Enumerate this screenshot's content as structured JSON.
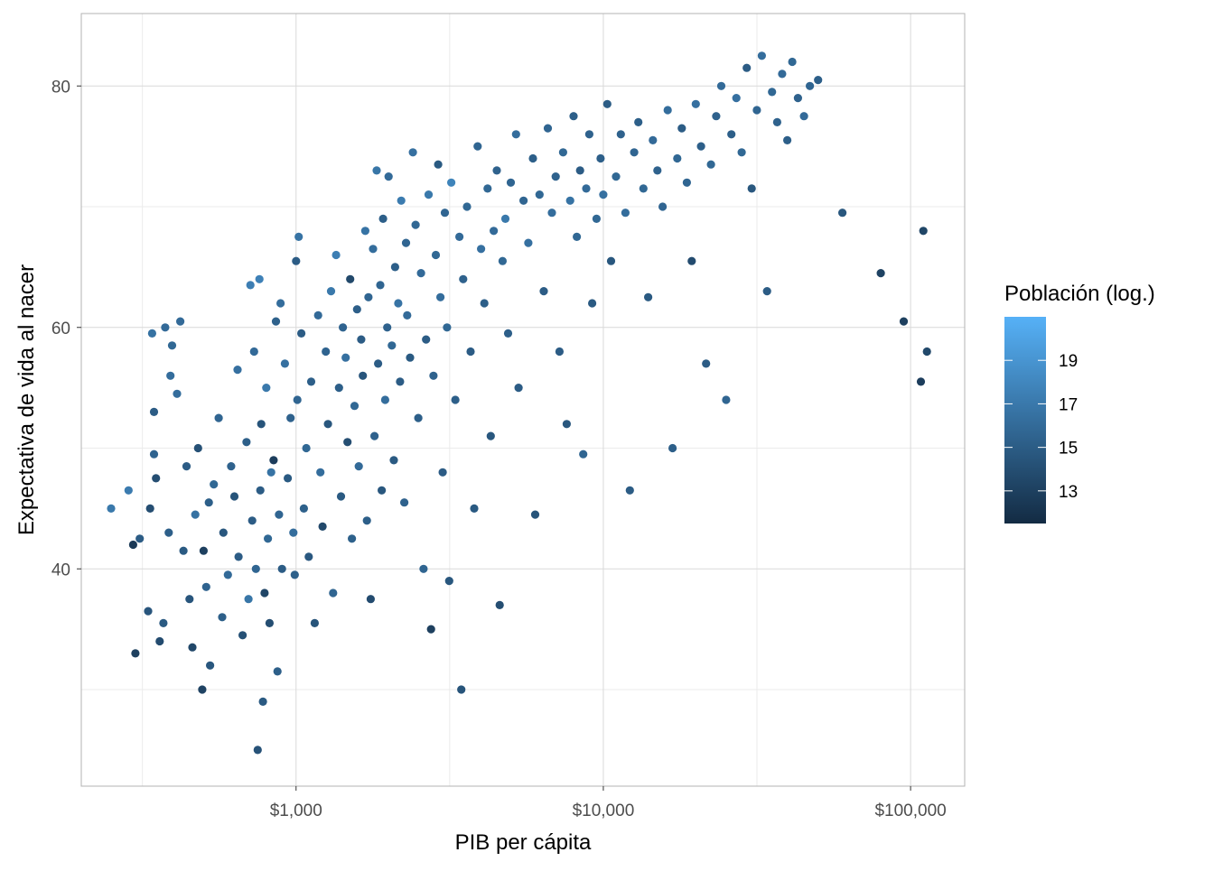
{
  "chart_data": {
    "type": "scatter",
    "xlabel": "PIB per cápita",
    "ylabel": "Expectativa de vida al nacer",
    "x_scale": "log10",
    "xlim": [
      200,
      150000
    ],
    "ylim": [
      22,
      86
    ],
    "x_ticks": [
      1000,
      10000,
      100000
    ],
    "x_tick_labels": [
      "$1,000",
      "$10,000",
      "$100,000"
    ],
    "y_ticks": [
      40,
      60,
      80
    ],
    "y_tick_labels": [
      "40",
      "60",
      "80"
    ],
    "grid": true,
    "color_scale": {
      "title": "Población (log.)",
      "range": [
        11.5,
        21
      ],
      "ticks": [
        13,
        15,
        17,
        19
      ],
      "tick_labels": [
        "13",
        "15",
        "17",
        "19"
      ],
      "low_color": "#132b43",
      "high_color": "#56b1f7"
    },
    "legend_position": "right",
    "points_note": "",
    "points": [
      [
        250,
        45,
        17.0
      ],
      [
        285,
        46.5,
        17.2
      ],
      [
        295,
        42,
        12.5
      ],
      [
        300,
        33,
        13.0
      ],
      [
        310,
        42.5,
        15.0
      ],
      [
        330,
        36.5,
        14.5
      ],
      [
        335,
        45,
        14.0
      ],
      [
        340,
        59.5,
        16.5
      ],
      [
        345,
        49.5,
        15.5
      ],
      [
        345,
        53,
        15.0
      ],
      [
        350,
        47.5,
        14.0
      ],
      [
        360,
        34,
        13.8
      ],
      [
        370,
        35.5,
        14.8
      ],
      [
        375,
        60,
        16.0
      ],
      [
        385,
        43,
        15.2
      ],
      [
        390,
        56,
        16.2
      ],
      [
        395,
        58.5,
        15.8
      ],
      [
        410,
        54.5,
        16.2
      ],
      [
        420,
        60.5,
        16.0
      ],
      [
        430,
        41.5,
        14.8
      ],
      [
        440,
        48.5,
        15.0
      ],
      [
        450,
        37.5,
        14.5
      ],
      [
        460,
        33.5,
        13.5
      ],
      [
        470,
        44.5,
        16.5
      ],
      [
        480,
        50,
        14.2
      ],
      [
        495,
        30,
        13.2
      ],
      [
        500,
        41.5,
        13.0
      ],
      [
        510,
        38.5,
        15.5
      ],
      [
        520,
        45.5,
        15.2
      ],
      [
        525,
        32,
        14.6
      ],
      [
        540,
        47,
        15.8
      ],
      [
        560,
        52.5,
        15.6
      ],
      [
        575,
        36,
        15.2
      ],
      [
        580,
        43,
        14.6
      ],
      [
        600,
        39.5,
        16.0
      ],
      [
        615,
        48.5,
        15.4
      ],
      [
        630,
        46,
        14.4
      ],
      [
        645,
        56.5,
        16.4
      ],
      [
        650,
        41,
        15.0
      ],
      [
        670,
        34.5,
        14.2
      ],
      [
        690,
        50.5,
        15.2
      ],
      [
        700,
        37.5,
        16.8
      ],
      [
        710,
        63.5,
        17.4
      ],
      [
        720,
        44,
        15.0
      ],
      [
        730,
        58,
        16.0
      ],
      [
        740,
        40,
        15.6
      ],
      [
        750,
        25,
        14.3
      ],
      [
        760,
        64,
        17.6
      ],
      [
        765,
        46.5,
        15.0
      ],
      [
        770,
        52,
        14.4
      ],
      [
        780,
        29,
        14.8
      ],
      [
        790,
        38,
        13.4
      ],
      [
        800,
        55,
        17.0
      ],
      [
        810,
        42.5,
        15.8
      ],
      [
        820,
        35.5,
        14.0
      ],
      [
        830,
        48,
        16.6
      ],
      [
        845,
        49,
        12.8
      ],
      [
        860,
        60.5,
        15.3
      ],
      [
        870,
        31.5,
        15.2
      ],
      [
        880,
        44.5,
        15.6
      ],
      [
        890,
        62,
        16.2
      ],
      [
        900,
        40,
        15.0
      ],
      [
        920,
        57,
        16.4
      ],
      [
        940,
        47.5,
        14.8
      ],
      [
        960,
        52.5,
        15.4
      ],
      [
        980,
        43,
        16.2
      ],
      [
        990,
        39.5,
        15.3
      ],
      [
        1000,
        65.5,
        15.0
      ],
      [
        1010,
        54,
        15.6
      ],
      [
        1020,
        67.5,
        16.6
      ],
      [
        1040,
        59.5,
        15.0
      ],
      [
        1060,
        45,
        15.3
      ],
      [
        1080,
        50,
        15.8
      ],
      [
        1100,
        41,
        14.7
      ],
      [
        1120,
        55.5,
        15.2
      ],
      [
        1150,
        35.5,
        14.4
      ],
      [
        1180,
        61,
        16.0
      ],
      [
        1200,
        48,
        16.2
      ],
      [
        1220,
        43.5,
        13.6
      ],
      [
        1250,
        58,
        15.5
      ],
      [
        1270,
        52,
        14.6
      ],
      [
        1300,
        63,
        17.0
      ],
      [
        1320,
        38,
        15.6
      ],
      [
        1350,
        66,
        17.4
      ],
      [
        1380,
        55,
        15.2
      ],
      [
        1400,
        46,
        14.8
      ],
      [
        1420,
        60,
        15.5
      ],
      [
        1450,
        57.5,
        16.4
      ],
      [
        1470,
        50.5,
        14.0
      ],
      [
        1500,
        64,
        13.6
      ],
      [
        1520,
        42.5,
        15.3
      ],
      [
        1550,
        53.5,
        15.8
      ],
      [
        1580,
        61.5,
        15.2
      ],
      [
        1600,
        48.5,
        16.0
      ],
      [
        1630,
        59,
        15.0
      ],
      [
        1650,
        56,
        14.5
      ],
      [
        1680,
        68,
        16.6
      ],
      [
        1700,
        44,
        15.2
      ],
      [
        1720,
        62.5,
        15.6
      ],
      [
        1750,
        37.5,
        13.8
      ],
      [
        1780,
        66.5,
        16.2
      ],
      [
        1800,
        51,
        15.4
      ],
      [
        1830,
        73,
        16.8
      ],
      [
        1850,
        57,
        15.0
      ],
      [
        1880,
        63.5,
        15.6
      ],
      [
        1900,
        46.5,
        14.6
      ],
      [
        1920,
        69,
        15.2
      ],
      [
        1950,
        54,
        16.2
      ],
      [
        1980,
        60,
        15.4
      ],
      [
        2000,
        72.5,
        16.0
      ],
      [
        2050,
        58.5,
        15.8
      ],
      [
        2080,
        49,
        14.8
      ],
      [
        2100,
        65,
        15.2
      ],
      [
        2150,
        62,
        16.6
      ],
      [
        2180,
        55.5,
        15.0
      ],
      [
        2200,
        70.5,
        17.2
      ],
      [
        2250,
        45.5,
        15.4
      ],
      [
        2280,
        67,
        15.6
      ],
      [
        2300,
        61,
        16.0
      ],
      [
        2350,
        57.5,
        14.8
      ],
      [
        2400,
        74.5,
        16.4
      ],
      [
        2450,
        68.5,
        15.8
      ],
      [
        2500,
        52.5,
        15.2
      ],
      [
        2550,
        64.5,
        16.0
      ],
      [
        2600,
        40,
        15.6
      ],
      [
        2650,
        59,
        15.0
      ],
      [
        2700,
        71,
        17.0
      ],
      [
        2750,
        35,
        13.0
      ],
      [
        2800,
        56,
        15.4
      ],
      [
        2850,
        66,
        15.8
      ],
      [
        2900,
        73.5,
        14.8
      ],
      [
        2950,
        62.5,
        16.2
      ],
      [
        3000,
        48,
        15.0
      ],
      [
        3050,
        69.5,
        15.6
      ],
      [
        3100,
        60,
        15.8
      ],
      [
        3150,
        39,
        14.6
      ],
      [
        3200,
        72,
        17.8
      ],
      [
        3300,
        54,
        15.2
      ],
      [
        3400,
        67.5,
        16.0
      ],
      [
        3450,
        30,
        14.4
      ],
      [
        3500,
        64,
        15.4
      ],
      [
        3600,
        70,
        15.8
      ],
      [
        3700,
        58,
        15.0
      ],
      [
        3800,
        45,
        14.8
      ],
      [
        3900,
        75,
        15.6
      ],
      [
        4000,
        66.5,
        16.4
      ],
      [
        4100,
        62,
        15.2
      ],
      [
        4200,
        71.5,
        15.8
      ],
      [
        4300,
        51,
        14.6
      ],
      [
        4400,
        68,
        16.0
      ],
      [
        4500,
        73,
        15.4
      ],
      [
        4600,
        37,
        14.0
      ],
      [
        4700,
        65.5,
        15.8
      ],
      [
        4800,
        69,
        17.0
      ],
      [
        4900,
        59.5,
        15.2
      ],
      [
        5000,
        72,
        15.6
      ],
      [
        5200,
        76,
        16.2
      ],
      [
        5300,
        55,
        15.0
      ],
      [
        5500,
        70.5,
        15.6
      ],
      [
        5700,
        67,
        16.4
      ],
      [
        5900,
        74,
        15.2
      ],
      [
        6000,
        44.5,
        14.4
      ],
      [
        6200,
        71,
        15.8
      ],
      [
        6400,
        63,
        15.0
      ],
      [
        6600,
        76.5,
        15.6
      ],
      [
        6800,
        69.5,
        16.2
      ],
      [
        7000,
        72.5,
        15.4
      ],
      [
        7200,
        58,
        15.0
      ],
      [
        7400,
        74.5,
        15.8
      ],
      [
        7600,
        52,
        14.6
      ],
      [
        7800,
        70.5,
        16.6
      ],
      [
        8000,
        77.5,
        15.2
      ],
      [
        8200,
        67.5,
        15.8
      ],
      [
        8400,
        73,
        15.0
      ],
      [
        8600,
        49.5,
        15.6
      ],
      [
        8800,
        71.5,
        16.0
      ],
      [
        9000,
        76,
        15.4
      ],
      [
        9200,
        62,
        14.8
      ],
      [
        9500,
        69,
        15.8
      ],
      [
        9800,
        74,
        15.2
      ],
      [
        10000,
        71,
        16.4
      ],
      [
        10300,
        78.5,
        15.0
      ],
      [
        10600,
        65.5,
        14.6
      ],
      [
        11000,
        72.5,
        15.8
      ],
      [
        11400,
        76,
        15.4
      ],
      [
        11800,
        69.5,
        16.2
      ],
      [
        12200,
        46.5,
        15.0
      ],
      [
        12600,
        74.5,
        15.6
      ],
      [
        13000,
        77,
        15.2
      ],
      [
        13500,
        71.5,
        15.8
      ],
      [
        14000,
        62.5,
        14.8
      ],
      [
        14500,
        75.5,
        16.0
      ],
      [
        15000,
        73,
        15.4
      ],
      [
        15600,
        70,
        15.6
      ],
      [
        16200,
        78,
        16.2
      ],
      [
        16800,
        50,
        15.2
      ],
      [
        17400,
        74,
        15.8
      ],
      [
        18000,
        76.5,
        15.0
      ],
      [
        18700,
        72,
        15.6
      ],
      [
        19400,
        65.5,
        13.8
      ],
      [
        20000,
        78.5,
        16.4
      ],
      [
        20800,
        75,
        15.2
      ],
      [
        21600,
        57,
        15.0
      ],
      [
        22400,
        73.5,
        15.8
      ],
      [
        23300,
        77.5,
        15.4
      ],
      [
        24200,
        80,
        16.0
      ],
      [
        25100,
        54,
        15.6
      ],
      [
        26100,
        76,
        15.2
      ],
      [
        27100,
        79,
        16.4
      ],
      [
        28200,
        74.5,
        15.8
      ],
      [
        29300,
        81.5,
        15.0
      ],
      [
        30400,
        71.5,
        14.6
      ],
      [
        31600,
        78,
        15.6
      ],
      [
        32800,
        82.5,
        16.2
      ],
      [
        34100,
        63,
        15.0
      ],
      [
        35400,
        79.5,
        15.8
      ],
      [
        36800,
        77,
        15.4
      ],
      [
        38200,
        81,
        16.0
      ],
      [
        39700,
        75.5,
        15.2
      ],
      [
        41200,
        82,
        15.8
      ],
      [
        43000,
        79,
        15.4
      ],
      [
        45000,
        77.5,
        16.0
      ],
      [
        47000,
        80,
        15.6
      ],
      [
        50000,
        80.5,
        15.2
      ],
      [
        60000,
        69.5,
        14.6
      ],
      [
        80000,
        64.5,
        13.2
      ],
      [
        95000,
        60.5,
        13.0
      ],
      [
        108000,
        55.5,
        12.8
      ],
      [
        110000,
        68,
        13.4
      ],
      [
        113000,
        58,
        13.6
      ]
    ]
  }
}
